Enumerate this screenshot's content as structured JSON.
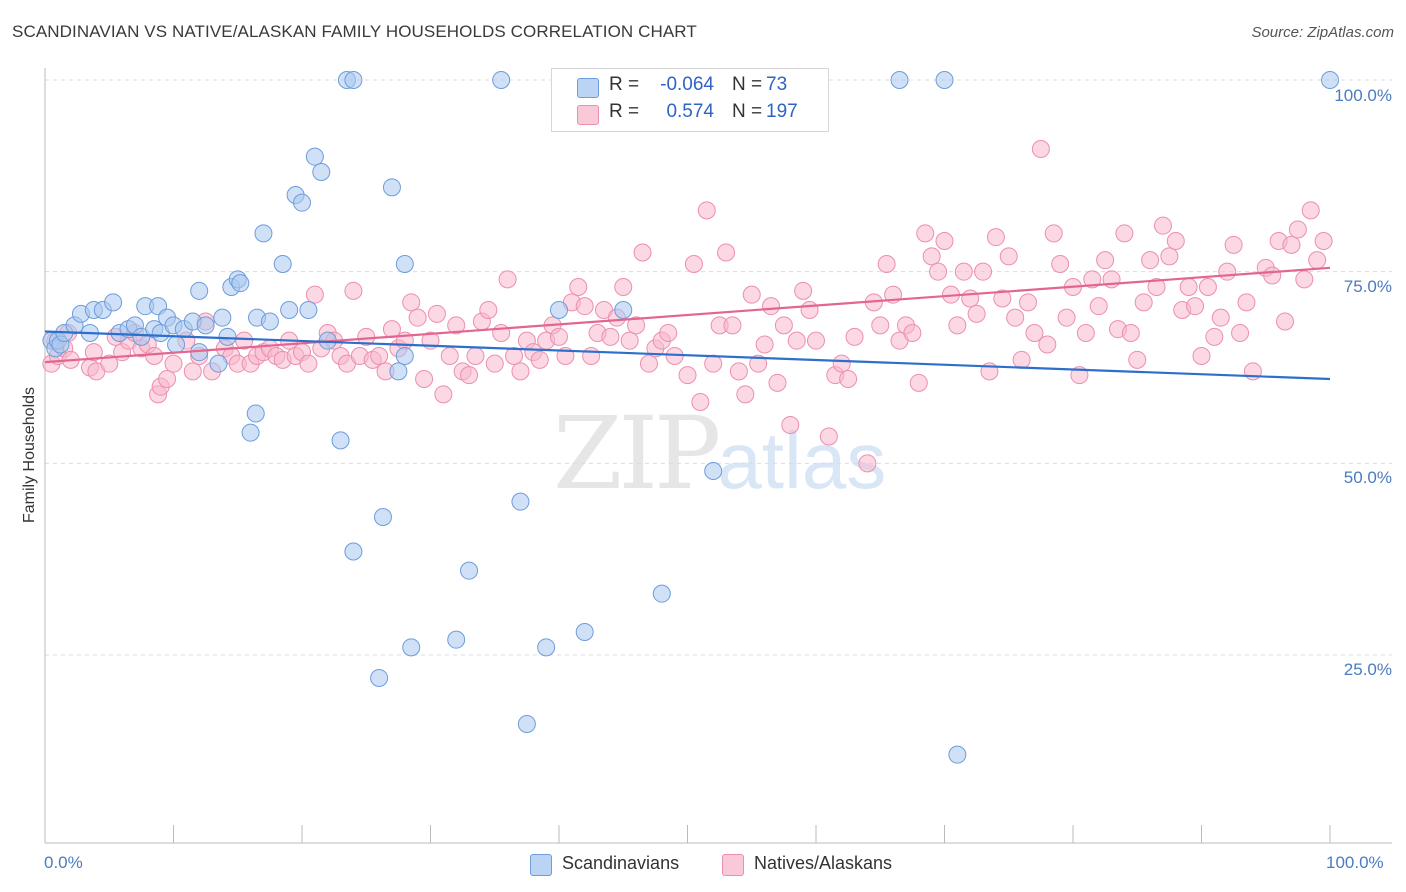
{
  "title": "SCANDINAVIAN VS NATIVE/ALASKAN FAMILY HOUSEHOLDS CORRELATION CHART",
  "source": "Source: ZipAtlas.com",
  "watermark": {
    "part1": "ZIP",
    "part2": "atlas"
  },
  "legend": {
    "rows": [
      {
        "r_label": "R =",
        "r_value": "-0.064",
        "n_label": "N =",
        "n_value": "73"
      },
      {
        "r_label": "R =",
        "r_value": "0.574",
        "n_label": "N =",
        "n_value": "197"
      }
    ]
  },
  "bottom_legend": {
    "series1": "Scandinavians",
    "series2": "Natives/Alaskans"
  },
  "colors": {
    "blue_fill": "#a9c8f0",
    "blue_stroke": "#6d9ddb",
    "blue_line": "#2d6fcc",
    "pink_fill": "#f7b8cc",
    "pink_stroke": "#ec8fae",
    "pink_line": "#e2668f",
    "tick_text": "#4a7cc0"
  },
  "chart_data": {
    "type": "scatter",
    "xlabel": "",
    "ylabel": "Family Households",
    "xlim": [
      0,
      100
    ],
    "ylim": [
      3,
      105
    ],
    "x_tick_labels": [
      "0.0%",
      "100.0%"
    ],
    "y_ticks": [
      {
        "value": 25,
        "label": "25.0%"
      },
      {
        "value": 50,
        "label": "50.0%"
      },
      {
        "value": 75,
        "label": "75.0%"
      },
      {
        "value": 100,
        "label": "100.0%"
      }
    ],
    "grid": "horizontal dashed",
    "series": [
      {
        "name": "Scandinavians",
        "color": "#a9c8f0",
        "trend": {
          "x": [
            0,
            100
          ],
          "y": [
            67.2,
            61.0
          ]
        },
        "points": [
          [
            0.5,
            66
          ],
          [
            0.8,
            65
          ],
          [
            1.0,
            66
          ],
          [
            1.2,
            65.5
          ],
          [
            1.5,
            67
          ],
          [
            2.3,
            68
          ],
          [
            2.8,
            69.5
          ],
          [
            3.5,
            67
          ],
          [
            3.8,
            70
          ],
          [
            4.5,
            70
          ],
          [
            5.3,
            71
          ],
          [
            5.8,
            67
          ],
          [
            6.5,
            67.5
          ],
          [
            7,
            68
          ],
          [
            7.5,
            66.5
          ],
          [
            7.8,
            70.5
          ],
          [
            8.5,
            67.5
          ],
          [
            8.8,
            70.5
          ],
          [
            9,
            67
          ],
          [
            9.5,
            69
          ],
          [
            10,
            68
          ],
          [
            10.2,
            65.5
          ],
          [
            10.8,
            67.5
          ],
          [
            11.5,
            68.5
          ],
          [
            12,
            64.5
          ],
          [
            12,
            72.5
          ],
          [
            12.5,
            68
          ],
          [
            13.5,
            63
          ],
          [
            13.8,
            69
          ],
          [
            14.2,
            66.5
          ],
          [
            14.5,
            73
          ],
          [
            15,
            74
          ],
          [
            15.2,
            73.5
          ],
          [
            16,
            54
          ],
          [
            16.4,
            56.5
          ],
          [
            16.5,
            69
          ],
          [
            17,
            80
          ],
          [
            17.5,
            68.5
          ],
          [
            18.5,
            76
          ],
          [
            19,
            70
          ],
          [
            19.5,
            85
          ],
          [
            20,
            84
          ],
          [
            20.5,
            70
          ],
          [
            21,
            90
          ],
          [
            21.5,
            88
          ],
          [
            22,
            66
          ],
          [
            23,
            53
          ],
          [
            23.5,
            100
          ],
          [
            24,
            100
          ],
          [
            24,
            38.5
          ],
          [
            26,
            22
          ],
          [
            26.3,
            43
          ],
          [
            27,
            86
          ],
          [
            27.5,
            62
          ],
          [
            28,
            64
          ],
          [
            28,
            76
          ],
          [
            28.5,
            26
          ],
          [
            32,
            27
          ],
          [
            33,
            36
          ],
          [
            35.5,
            100
          ],
          [
            37,
            45
          ],
          [
            37.5,
            16
          ],
          [
            39,
            26
          ],
          [
            40,
            70
          ],
          [
            42,
            28
          ],
          [
            45,
            70
          ],
          [
            48,
            33
          ],
          [
            52,
            49
          ],
          [
            66.5,
            100
          ],
          [
            70,
            100
          ],
          [
            71,
            12
          ],
          [
            100,
            100
          ]
        ]
      },
      {
        "name": "Natives/Alaskans",
        "color": "#f7b8cc",
        "trend": {
          "x": [
            0,
            100
          ],
          "y": [
            63.2,
            75.5
          ]
        },
        "points": [
          [
            0.5,
            63
          ],
          [
            0.8,
            66
          ],
          [
            1.0,
            64
          ],
          [
            1.5,
            65
          ],
          [
            1.8,
            67
          ],
          [
            2.0,
            63.5
          ],
          [
            3.5,
            62.5
          ],
          [
            3.8,
            64.5
          ],
          [
            4,
            62
          ],
          [
            5,
            63
          ],
          [
            5.5,
            66.5
          ],
          [
            6,
            64.5
          ],
          [
            6.5,
            66
          ],
          [
            7,
            67
          ],
          [
            7.5,
            65
          ],
          [
            8,
            65.5
          ],
          [
            8.5,
            64
          ],
          [
            8.8,
            59
          ],
          [
            9,
            60
          ],
          [
            9.5,
            61
          ],
          [
            10,
            63
          ],
          [
            11,
            66
          ],
          [
            11.5,
            62
          ],
          [
            12,
            64
          ],
          [
            12.5,
            68.5
          ],
          [
            13,
            62
          ],
          [
            14,
            65
          ],
          [
            14.5,
            64
          ],
          [
            15,
            63
          ],
          [
            15.5,
            66
          ],
          [
            16,
            63
          ],
          [
            16.5,
            64
          ],
          [
            17,
            64.5
          ],
          [
            17.5,
            65
          ],
          [
            18,
            64
          ],
          [
            18.5,
            63.5
          ],
          [
            19,
            66
          ],
          [
            19.5,
            64
          ],
          [
            20,
            64.5
          ],
          [
            20.5,
            63
          ],
          [
            21,
            72
          ],
          [
            21.5,
            65
          ],
          [
            22,
            67
          ],
          [
            22.5,
            66
          ],
          [
            23,
            64
          ],
          [
            23.5,
            63
          ],
          [
            24,
            72.5
          ],
          [
            24.5,
            64
          ],
          [
            25,
            66.5
          ],
          [
            25.5,
            63.5
          ],
          [
            26,
            64
          ],
          [
            26.5,
            62
          ],
          [
            27,
            67.5
          ],
          [
            27.5,
            65
          ],
          [
            28,
            66
          ],
          [
            28.5,
            71
          ],
          [
            29,
            69
          ],
          [
            29.5,
            61
          ],
          [
            30,
            66
          ],
          [
            30.5,
            69.5
          ],
          [
            31,
            59
          ],
          [
            31.5,
            64
          ],
          [
            32,
            68
          ],
          [
            32.5,
            62
          ],
          [
            33,
            61.5
          ],
          [
            33.5,
            64
          ],
          [
            34,
            68.5
          ],
          [
            34.5,
            70
          ],
          [
            35,
            63
          ],
          [
            35.5,
            67
          ],
          [
            36,
            74
          ],
          [
            36.5,
            64
          ],
          [
            37,
            62
          ],
          [
            37.5,
            66
          ],
          [
            38,
            64.5
          ],
          [
            38.5,
            63.5
          ],
          [
            39,
            66
          ],
          [
            39.5,
            68
          ],
          [
            40,
            66.5
          ],
          [
            40.5,
            64
          ],
          [
            41,
            71
          ],
          [
            41.5,
            73
          ],
          [
            42,
            70.5
          ],
          [
            42.5,
            64
          ],
          [
            43,
            67
          ],
          [
            43.5,
            70
          ],
          [
            44,
            66.5
          ],
          [
            44.5,
            69
          ],
          [
            45,
            73
          ],
          [
            45.5,
            66
          ],
          [
            46,
            68
          ],
          [
            46.5,
            77.5
          ],
          [
            47,
            63
          ],
          [
            47.5,
            65
          ],
          [
            48,
            66
          ],
          [
            48.5,
            67
          ],
          [
            49,
            64
          ],
          [
            50,
            61.5
          ],
          [
            50.5,
            76
          ],
          [
            51,
            58
          ],
          [
            51.5,
            83
          ],
          [
            52,
            63
          ],
          [
            52.5,
            68
          ],
          [
            53,
            77.5
          ],
          [
            53.5,
            68
          ],
          [
            54,
            62
          ],
          [
            54.5,
            59
          ],
          [
            55,
            72
          ],
          [
            55.5,
            63
          ],
          [
            56,
            65.5
          ],
          [
            56.5,
            70.5
          ],
          [
            57,
            60.5
          ],
          [
            57.5,
            68
          ],
          [
            58,
            55
          ],
          [
            58.5,
            66
          ],
          [
            59,
            72.5
          ],
          [
            59.5,
            70
          ],
          [
            60,
            66
          ],
          [
            61,
            53.5
          ],
          [
            61.5,
            61.5
          ],
          [
            62,
            63
          ],
          [
            62.5,
            61
          ],
          [
            63,
            66.5
          ],
          [
            64,
            50
          ],
          [
            64.5,
            71
          ],
          [
            65,
            68
          ],
          [
            65.5,
            76
          ],
          [
            66,
            72
          ],
          [
            66.5,
            66
          ],
          [
            67,
            68
          ],
          [
            67.5,
            67
          ],
          [
            68,
            60.5
          ],
          [
            68.5,
            80
          ],
          [
            69,
            77
          ],
          [
            69.5,
            75
          ],
          [
            70,
            79
          ],
          [
            70.5,
            72
          ],
          [
            71,
            68
          ],
          [
            71.5,
            75
          ],
          [
            72,
            71.5
          ],
          [
            72.5,
            69.5
          ],
          [
            73,
            75
          ],
          [
            73.5,
            62
          ],
          [
            74,
            79.5
          ],
          [
            74.5,
            71.5
          ],
          [
            75,
            77
          ],
          [
            75.5,
            69
          ],
          [
            76,
            63.5
          ],
          [
            76.5,
            71
          ],
          [
            77,
            67
          ],
          [
            77.5,
            91
          ],
          [
            78,
            65.5
          ],
          [
            78.5,
            80
          ],
          [
            79,
            76
          ],
          [
            79.5,
            69
          ],
          [
            80,
            73
          ],
          [
            80.5,
            61.5
          ],
          [
            81,
            67
          ],
          [
            81.5,
            74
          ],
          [
            82,
            70.5
          ],
          [
            82.5,
            76.5
          ],
          [
            83,
            74
          ],
          [
            83.5,
            67.5
          ],
          [
            84,
            80
          ],
          [
            84.5,
            67
          ],
          [
            85,
            63.5
          ],
          [
            85.5,
            71
          ],
          [
            86,
            76.5
          ],
          [
            86.5,
            73
          ],
          [
            87,
            81
          ],
          [
            87.5,
            77
          ],
          [
            88,
            79
          ],
          [
            88.5,
            70
          ],
          [
            89,
            73
          ],
          [
            89.5,
            70.5
          ],
          [
            90,
            64
          ],
          [
            90.5,
            73
          ],
          [
            91,
            66.5
          ],
          [
            91.5,
            69
          ],
          [
            92,
            75
          ],
          [
            92.5,
            78.5
          ],
          [
            93,
            67
          ],
          [
            93.5,
            71
          ],
          [
            94,
            62
          ],
          [
            95,
            75.5
          ],
          [
            95.5,
            74.5
          ],
          [
            96,
            79
          ],
          [
            96.5,
            68.5
          ],
          [
            97,
            78.5
          ],
          [
            97.5,
            80.5
          ],
          [
            98,
            74
          ],
          [
            98.5,
            83
          ],
          [
            99,
            76.5
          ],
          [
            99.5,
            79
          ]
        ]
      }
    ]
  }
}
